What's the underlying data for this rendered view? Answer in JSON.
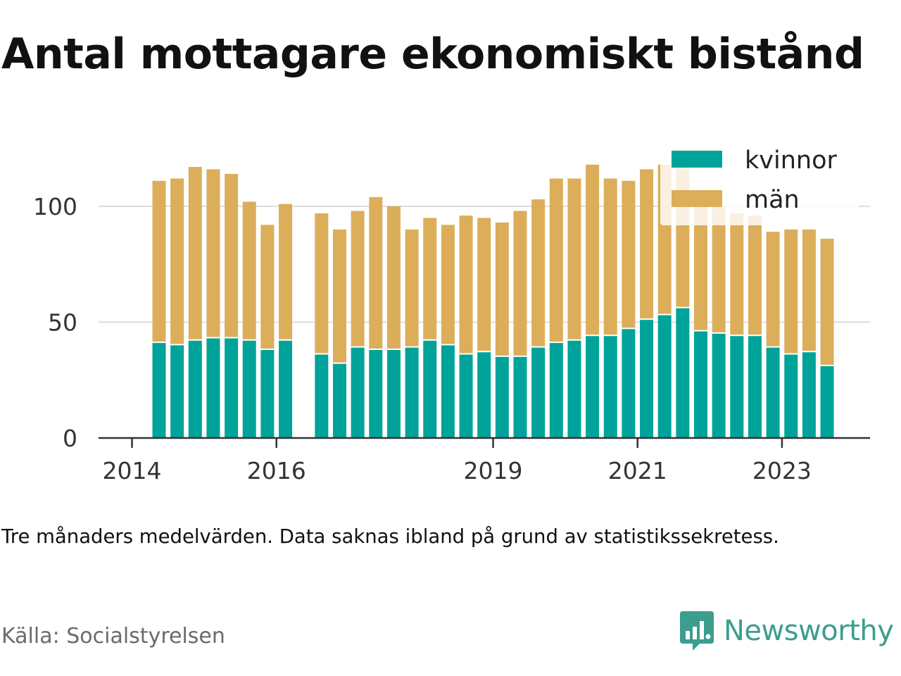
{
  "title": "Antal mottagare ekonomiskt bistånd",
  "note": "Tre månaders medelvärden. Data saknas ibland på grund av statistikssekretess.",
  "source": "Källa: Socialstyrelsen",
  "brand": "Newsworthy",
  "colors": {
    "kvinnor": "#00a39a",
    "man": "#dcae5a",
    "grid": "#dddddd",
    "axis": "#333333",
    "brand": "#3b9e8f"
  },
  "chart_data": {
    "type": "bar",
    "stacked": true,
    "x_tick_labels": [
      "2014",
      "2016",
      "2019",
      "2021",
      "2023"
    ],
    "y_ticks": [
      0,
      50,
      100
    ],
    "ylim": [
      0,
      120
    ],
    "legend": {
      "position": "top-right",
      "entries": [
        "kvinnor",
        "män"
      ]
    },
    "grid": true,
    "categories": [
      "2014 Q2",
      "2014 Q3",
      "2014 Q4",
      "2015 Q1",
      "2015 Q2",
      "2015 Q3",
      "2015 Q4",
      "2016 Q1",
      "2016 Q2",
      "2016 Q3",
      "2016 Q4",
      "2017 Q1",
      "2017 Q2",
      "2017 Q3",
      "2017 Q4",
      "2018 Q1",
      "2018 Q2",
      "2018 Q3",
      "2018 Q4",
      "2019 Q1",
      "2019 Q2",
      "2019 Q3",
      "2019 Q4",
      "2020 Q1",
      "2020 Q2",
      "2020 Q3",
      "2020 Q4",
      "2021 Q1",
      "2021 Q2",
      "2021 Q3",
      "2021 Q4",
      "2022 Q1",
      "2022 Q2",
      "2022 Q3",
      "2022 Q4",
      "2023 Q1",
      "2023 Q2",
      "2023 Q3"
    ],
    "series": [
      {
        "name": "kvinnor",
        "values": [
          41,
          40,
          42,
          43,
          43,
          42,
          38,
          42,
          null,
          36,
          32,
          39,
          38,
          38,
          39,
          42,
          40,
          36,
          37,
          35,
          35,
          39,
          41,
          42,
          44,
          44,
          47,
          51,
          53,
          56,
          46,
          45,
          44,
          44,
          39,
          36,
          37,
          31
        ]
      },
      {
        "name": "män",
        "values": [
          70,
          72,
          75,
          73,
          71,
          60,
          54,
          59,
          null,
          61,
          58,
          59,
          66,
          62,
          51,
          53,
          52,
          60,
          58,
          58,
          63,
          64,
          71,
          70,
          74,
          68,
          64,
          65,
          65,
          62,
          55,
          55,
          53,
          52,
          50,
          54,
          53,
          55
        ]
      }
    ]
  }
}
